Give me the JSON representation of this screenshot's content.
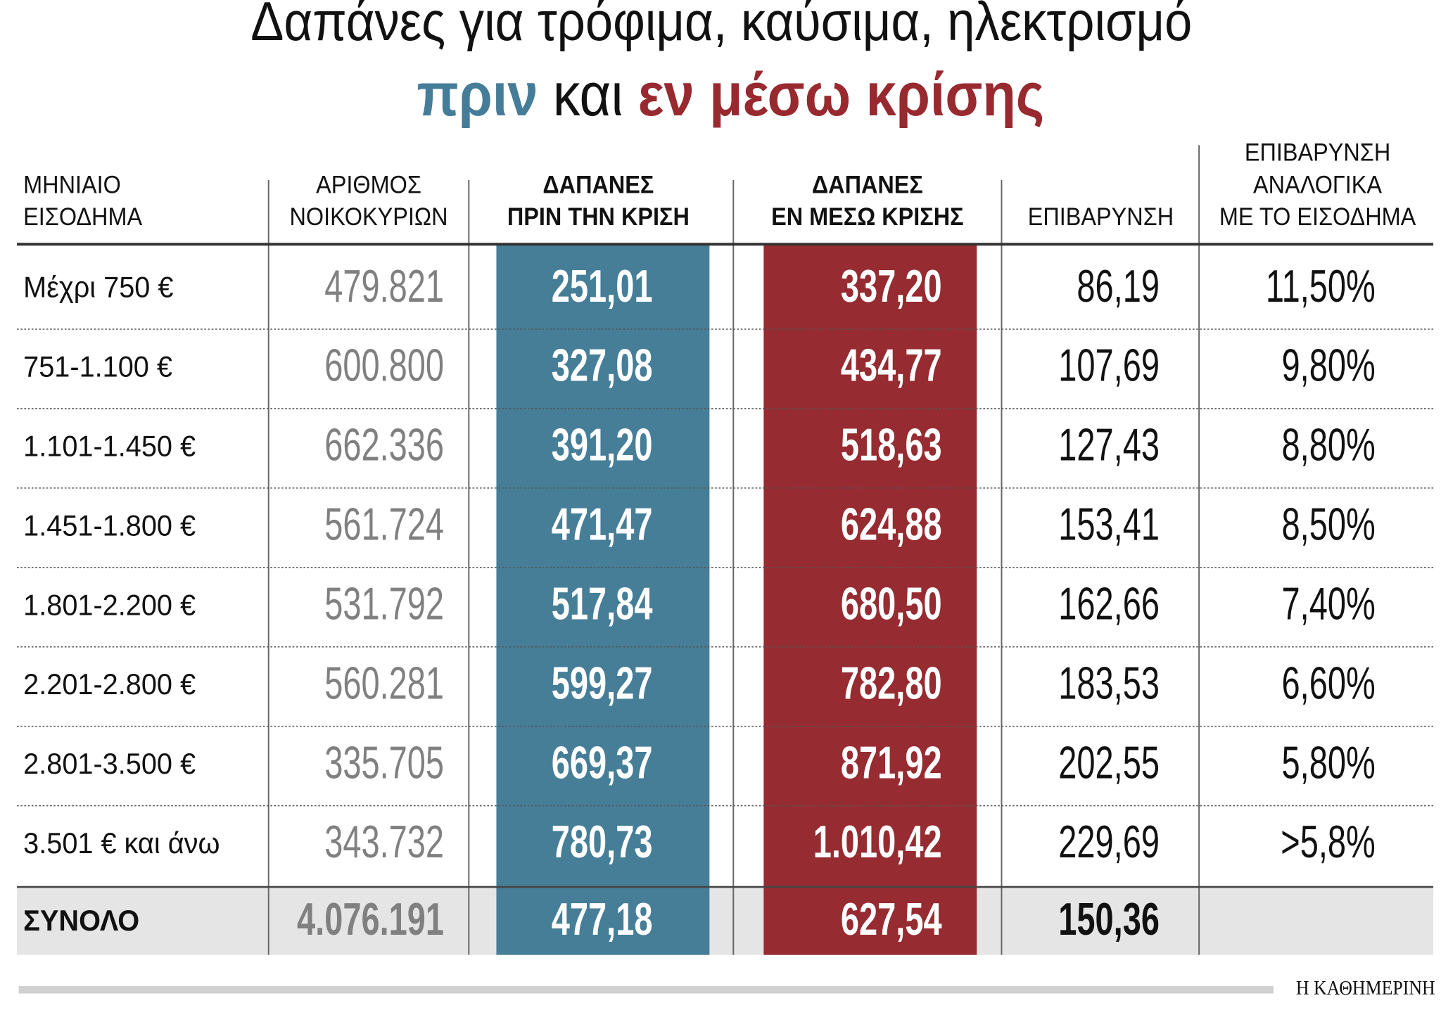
{
  "title": {
    "line1": "Δαπάνες για τρόφιμα, καύσιμα, ηλεκτρισμό",
    "before": "πριν",
    "and": "και",
    "during": "εν μέσω κρίσης"
  },
  "table": {
    "headers": [
      [
        "ΜΗΝΙΑΙΟ",
        "ΕΙΣΟΔΗΜΑ"
      ],
      [
        "ΑΡΙΘΜΟΣ",
        "ΝΟΙΚΟΚΥΡΙΩΝ"
      ],
      [
        "ΔΑΠΑΝΕΣ",
        "ΠΡΙΝ ΤΗΝ ΚΡΙΣΗ"
      ],
      [
        "ΔΑΠΑΝΕΣ",
        "ΕΝ ΜΕΣΩ ΚΡΙΣΗΣ"
      ],
      [
        "ΕΠΙΒΑΡΥΝΣΗ"
      ],
      [
        "ΕΠΙΒΑΡΥΝΣΗ",
        "ΑΝΑΛΟΓΙΚΑ",
        "ΜΕ ΤΟ ΕΙΣΟΔΗΜΑ"
      ]
    ],
    "rows": [
      [
        "Μέχρι 750 €",
        "479.821",
        "251,01",
        "337,20",
        "86,19",
        "11,50%"
      ],
      [
        "751-1.100 €",
        "600.800",
        "327,08",
        "434,77",
        "107,69",
        "9,80%"
      ],
      [
        "1.101-1.450 €",
        "662.336",
        "391,20",
        "518,63",
        "127,43",
        "8,80%"
      ],
      [
        "1.451-1.800 €",
        "561.724",
        "471,47",
        "624,88",
        "153,41",
        "8,50%"
      ],
      [
        "1.801-2.200 €",
        "531.792",
        "517,84",
        "680,50",
        "162,66",
        "7,40%"
      ],
      [
        "2.201-2.800 €",
        "560.281",
        "599,27",
        "782,80",
        "183,53",
        "6,60%"
      ],
      [
        "2.801-3.500 €",
        "335.705",
        "669,37",
        "871,92",
        "202,55",
        "5,80%"
      ],
      [
        "3.501 € και άνω",
        "343.732",
        "780,73",
        "1.010,42",
        "229,69",
        ">5,8%"
      ]
    ],
    "total": [
      "ΣΥΝΟΛΟ",
      "4.076.191",
      "477,18",
      "627,54",
      "150,36"
    ]
  },
  "source": "Η ΚΑΘΗΜΕΡΙΝΗ"
}
